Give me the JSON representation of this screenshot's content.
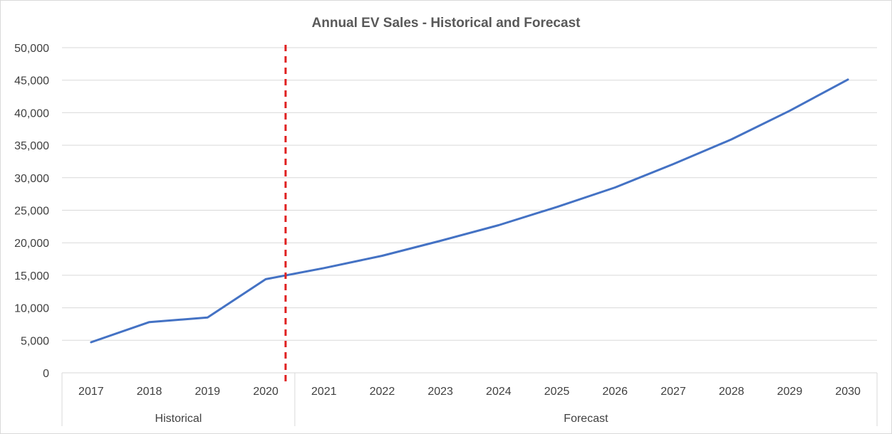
{
  "chart_data": {
    "type": "line",
    "title": "Annual EV Sales  - Historical and Forecast",
    "xlabel": "",
    "ylabel": "",
    "categories": [
      "2017",
      "2018",
      "2019",
      "2020",
      "2021",
      "2022",
      "2023",
      "2024",
      "2025",
      "2026",
      "2027",
      "2028",
      "2029",
      "2030"
    ],
    "groups": [
      {
        "label": "Historical",
        "categories": [
          "2017",
          "2018",
          "2019",
          "2020"
        ]
      },
      {
        "label": "Forecast",
        "categories": [
          "2021",
          "2022",
          "2023",
          "2024",
          "2025",
          "2026",
          "2027",
          "2028",
          "2029",
          "2030"
        ]
      }
    ],
    "series": [
      {
        "values": [
          4700,
          7800,
          8500,
          14400,
          16100,
          18000,
          20300,
          22700,
          25500,
          28500,
          32100,
          35900,
          40300,
          45100
        ],
        "color": "#4472c4"
      }
    ],
    "ylim": [
      0,
      50000
    ],
    "yticks": [
      0,
      5000,
      10000,
      15000,
      20000,
      25000,
      30000,
      35000,
      40000,
      45000,
      50000
    ],
    "ytick_labels": [
      "0",
      "5,000",
      "10,000",
      "15,000",
      "20,000",
      "25,000",
      "30,000",
      "35,000",
      "40,000",
      "45,000",
      "50,000"
    ],
    "grid": true,
    "legend": "none",
    "divider": {
      "between": [
        "2020",
        "2021"
      ],
      "color": "#e02020",
      "style": "dashed"
    }
  }
}
